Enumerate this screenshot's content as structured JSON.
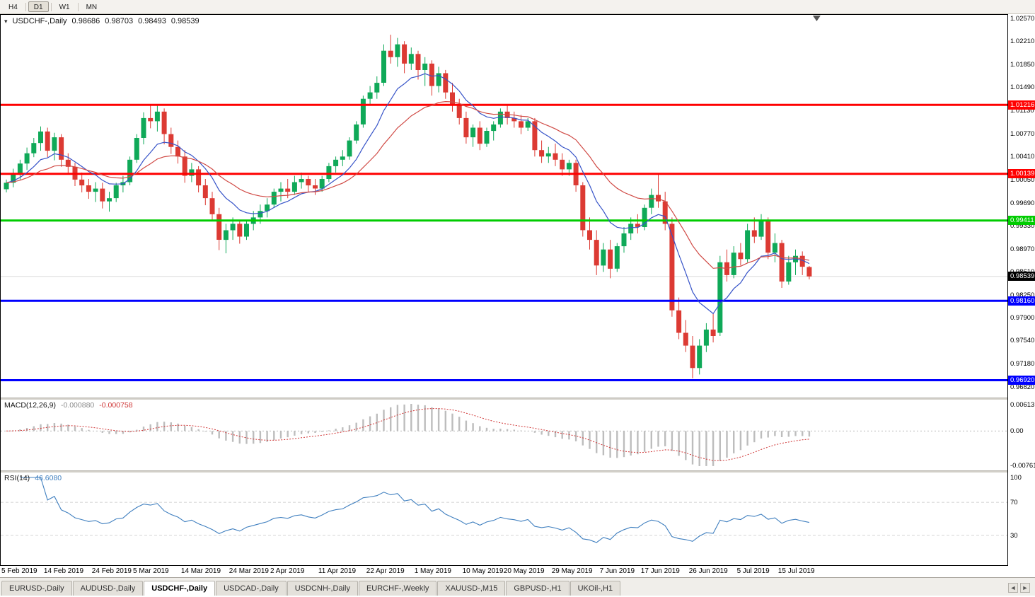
{
  "toolbar": {
    "timeframes": [
      "H4",
      "D1",
      "W1",
      "MN"
    ],
    "active": "D1"
  },
  "chart_data": {
    "type": "candlestick",
    "symbol": "USDCHF",
    "period": "Daily",
    "title": "USDCHF-,Daily",
    "legend": {
      "symbol": "USDCHF-,Daily",
      "open": "0.98686",
      "high": "0.98703",
      "low": "0.98493",
      "close": "0.98539"
    },
    "ylim": [
      0.9665,
      1.0262
    ],
    "price_axis_labels": [
      "1.02570",
      "1.02210",
      "1.01850",
      "1.01490",
      "1.01130",
      "1.00770",
      "1.00410",
      "1.00050",
      "0.99690",
      "0.99330",
      "0.98970",
      "0.98610",
      "0.98250",
      "0.97900",
      "0.97540",
      "0.97180",
      "0.96820"
    ],
    "levels": [
      {
        "label": "1.01216",
        "price": 1.01216,
        "color": "#ff0000"
      },
      {
        "label": "1.00139",
        "price": 1.00139,
        "color": "#ff0000"
      },
      {
        "label": "0.99411",
        "price": 0.99411,
        "color": "#00cc00"
      },
      {
        "label": "0.98160",
        "price": 0.9816,
        "color": "#0000ff"
      },
      {
        "label": "0.96920",
        "price": 0.9692,
        "color": "#0000ff"
      }
    ],
    "current_price": {
      "label": "0.98539",
      "value": 0.98539
    },
    "moving_averages": [
      {
        "type": "ema",
        "period": 9,
        "color": "#3653c8"
      },
      {
        "type": "ema",
        "period": 21,
        "color": "#d04a45"
      }
    ],
    "colors": {
      "bull": "#0fa958",
      "bear": "#dc3a33"
    },
    "x_axis_labels": [
      {
        "text": "5 Feb 2019",
        "index": 0
      },
      {
        "text": "14 Feb 2019",
        "index": 7
      },
      {
        "text": "24 Feb 2019",
        "index": 14
      },
      {
        "text": "5 Mar 2019",
        "index": 20
      },
      {
        "text": "14 Mar 2019",
        "index": 27
      },
      {
        "text": "24 Mar 2019",
        "index": 34
      },
      {
        "text": "2 Apr 2019",
        "index": 40
      },
      {
        "text": "11 Apr 2019",
        "index": 47
      },
      {
        "text": "22 Apr 2019",
        "index": 54
      },
      {
        "text": "1 May 2019",
        "index": 61
      },
      {
        "text": "10 May 2019",
        "index": 68
      },
      {
        "text": "20 May 2019",
        "index": 74
      },
      {
        "text": "29 May 2019",
        "index": 81
      },
      {
        "text": "7 Jun 2019",
        "index": 88
      },
      {
        "text": "17 Jun 2019",
        "index": 94
      },
      {
        "text": "26 Jun 2019",
        "index": 101
      },
      {
        "text": "5 Jul 2019",
        "index": 108
      },
      {
        "text": "15 Jul 2019",
        "index": 114
      }
    ],
    "dates": [
      "2019-02-05",
      "2019-02-06",
      "2019-02-07",
      "2019-02-08",
      "2019-02-11",
      "2019-02-12",
      "2019-02-13",
      "2019-02-14",
      "2019-02-15",
      "2019-02-18",
      "2019-02-19",
      "2019-02-20",
      "2019-02-21",
      "2019-02-22",
      "2019-02-25",
      "2019-02-26",
      "2019-02-27",
      "2019-02-28",
      "2019-03-01",
      "2019-03-04",
      "2019-03-05",
      "2019-03-06",
      "2019-03-07",
      "2019-03-08",
      "2019-03-11",
      "2019-03-12",
      "2019-03-13",
      "2019-03-14",
      "2019-03-15",
      "2019-03-18",
      "2019-03-19",
      "2019-03-20",
      "2019-03-21",
      "2019-03-22",
      "2019-03-25",
      "2019-03-26",
      "2019-03-27",
      "2019-03-28",
      "2019-03-29",
      "2019-04-01",
      "2019-04-02",
      "2019-04-03",
      "2019-04-04",
      "2019-04-05",
      "2019-04-08",
      "2019-04-09",
      "2019-04-10",
      "2019-04-11",
      "2019-04-12",
      "2019-04-15",
      "2019-04-16",
      "2019-04-17",
      "2019-04-18",
      "2019-04-19",
      "2019-04-22",
      "2019-04-23",
      "2019-04-24",
      "2019-04-25",
      "2019-04-26",
      "2019-04-29",
      "2019-04-30",
      "2019-05-01",
      "2019-05-02",
      "2019-05-03",
      "2019-05-06",
      "2019-05-07",
      "2019-05-08",
      "2019-05-09",
      "2019-05-10",
      "2019-05-13",
      "2019-05-14",
      "2019-05-15",
      "2019-05-16",
      "2019-05-17",
      "2019-05-20",
      "2019-05-21",
      "2019-05-22",
      "2019-05-23",
      "2019-05-24",
      "2019-05-27",
      "2019-05-28",
      "2019-05-29",
      "2019-05-30",
      "2019-05-31",
      "2019-06-03",
      "2019-06-04",
      "2019-06-05",
      "2019-06-06",
      "2019-06-07",
      "2019-06-10",
      "2019-06-11",
      "2019-06-12",
      "2019-06-13",
      "2019-06-14",
      "2019-06-17",
      "2019-06-18",
      "2019-06-19",
      "2019-06-20",
      "2019-06-21",
      "2019-06-24",
      "2019-06-25",
      "2019-06-26",
      "2019-06-27",
      "2019-06-28",
      "2019-07-01",
      "2019-07-02",
      "2019-07-03",
      "2019-07-04",
      "2019-07-05",
      "2019-07-08",
      "2019-07-09",
      "2019-07-10",
      "2019-07-11",
      "2019-07-12",
      "2019-07-15",
      "2019-07-16",
      "2019-07-17",
      "2019-07-18"
    ],
    "ohlc": [
      [
        0.999,
        1.0005,
        0.9985,
        1.0
      ],
      [
        1.0,
        1.0022,
        0.9993,
        1.0015
      ],
      [
        1.0015,
        1.0036,
        1.0005,
        1.003
      ],
      [
        1.003,
        1.0055,
        1.002,
        1.0046
      ],
      [
        1.0046,
        1.007,
        1.004,
        1.0062
      ],
      [
        1.0062,
        1.0088,
        1.005,
        1.008
      ],
      [
        1.008,
        1.0086,
        1.004,
        1.005
      ],
      [
        1.005,
        1.0078,
        1.0035,
        1.0071
      ],
      [
        1.0071,
        1.0076,
        1.0025,
        1.0036
      ],
      [
        1.0036,
        1.0046,
        1.0015,
        1.0025
      ],
      [
        1.0025,
        1.0031,
        0.9995,
        1.0005
      ],
      [
        1.0005,
        1.0016,
        0.9985,
        0.9996
      ],
      [
        0.9996,
        1.0006,
        0.9975,
        0.9986
      ],
      [
        0.9986,
        1.0001,
        0.997,
        0.9991
      ],
      [
        0.9991,
        1.0,
        0.996,
        0.9971
      ],
      [
        0.9971,
        0.9986,
        0.9955,
        0.9976
      ],
      [
        0.9976,
        1.0,
        0.997,
        0.9996
      ],
      [
        0.9996,
        1.0011,
        0.9985,
        1.0001
      ],
      [
        1.0001,
        1.0041,
        0.9996,
        1.0036
      ],
      [
        1.0036,
        1.0076,
        1.0031,
        1.007
      ],
      [
        1.007,
        1.011,
        1.006,
        1.0101
      ],
      [
        1.0101,
        1.0122,
        1.0085,
        1.0096
      ],
      [
        1.0096,
        1.0121,
        1.008,
        1.0111
      ],
      [
        1.0111,
        1.0116,
        1.006,
        1.0076
      ],
      [
        1.0076,
        1.0086,
        1.0045,
        1.0056
      ],
      [
        1.0056,
        1.0066,
        1.003,
        1.0041
      ],
      [
        1.0041,
        1.0051,
        1.0,
        1.0011
      ],
      [
        1.0011,
        1.0031,
        1.0001,
        1.0021
      ],
      [
        1.0021,
        1.0026,
        0.9985,
        0.9996
      ],
      [
        0.9996,
        1.0006,
        0.9965,
        0.9976
      ],
      [
        0.9976,
        0.9986,
        0.994,
        0.9951
      ],
      [
        0.9951,
        0.9961,
        0.9895,
        0.9911
      ],
      [
        0.9911,
        0.9936,
        0.989,
        0.9926
      ],
      [
        0.9926,
        0.9946,
        0.9911,
        0.9936
      ],
      [
        0.9936,
        0.9941,
        0.9905,
        0.9916
      ],
      [
        0.9916,
        0.9941,
        0.9911,
        0.9936
      ],
      [
        0.9936,
        0.9956,
        0.9926,
        0.9946
      ],
      [
        0.9946,
        0.9966,
        0.9936,
        0.9956
      ],
      [
        0.9956,
        0.9976,
        0.9946,
        0.9966
      ],
      [
        0.9966,
        0.9991,
        0.9961,
        0.9986
      ],
      [
        0.9986,
        1.0001,
        0.9971,
        0.9991
      ],
      [
        0.9991,
        1.0006,
        0.9976,
        0.9986
      ],
      [
        0.9986,
        1.0011,
        0.9981,
        1.0001
      ],
      [
        1.0001,
        1.0016,
        0.9991,
        1.0006
      ],
      [
        1.0006,
        1.0011,
        0.9986,
        0.9996
      ],
      [
        0.9996,
        1.0006,
        0.9981,
        0.9991
      ],
      [
        0.9991,
        1.0011,
        0.9986,
        1.0006
      ],
      [
        1.0006,
        1.0031,
        1.0001,
        1.0026
      ],
      [
        1.0026,
        1.0041,
        1.0016,
        1.0036
      ],
      [
        1.0036,
        1.0051,
        1.0026,
        1.0041
      ],
      [
        1.0041,
        1.0071,
        1.0036,
        1.0066
      ],
      [
        1.0066,
        1.0096,
        1.0061,
        1.0091
      ],
      [
        1.0091,
        1.0136,
        1.0086,
        1.0131
      ],
      [
        1.0131,
        1.0151,
        1.0121,
        1.0141
      ],
      [
        1.0141,
        1.0166,
        1.0131,
        1.0156
      ],
      [
        1.0156,
        1.0216,
        1.0151,
        1.0206
      ],
      [
        1.0206,
        1.0231,
        1.0186,
        1.0196
      ],
      [
        1.0196,
        1.0226,
        1.0181,
        1.0216
      ],
      [
        1.0216,
        1.0221,
        1.0171,
        1.0186
      ],
      [
        1.0186,
        1.0211,
        1.0176,
        1.0201
      ],
      [
        1.0201,
        1.0206,
        1.0161,
        1.0176
      ],
      [
        1.0176,
        1.0196,
        1.0151,
        1.0186
      ],
      [
        1.0186,
        1.0191,
        1.0136,
        1.0151
      ],
      [
        1.0151,
        1.0181,
        1.0141,
        1.0171
      ],
      [
        1.0171,
        1.0176,
        1.0131,
        1.0141
      ],
      [
        1.0141,
        1.0156,
        1.0111,
        1.0121
      ],
      [
        1.0121,
        1.0131,
        1.0091,
        1.0101
      ],
      [
        1.0101,
        1.0111,
        1.0061,
        1.0071
      ],
      [
        1.0071,
        1.0091,
        1.0056,
        1.0086
      ],
      [
        1.0086,
        1.0096,
        1.0051,
        1.0061
      ],
      [
        1.0061,
        1.0086,
        1.0056,
        1.0081
      ],
      [
        1.0081,
        1.0096,
        1.0066,
        1.0091
      ],
      [
        1.0091,
        1.0116,
        1.0086,
        1.0111
      ],
      [
        1.0111,
        1.0121,
        1.0091,
        1.0101
      ],
      [
        1.0101,
        1.0111,
        1.0086,
        1.0096
      ],
      [
        1.0096,
        1.0106,
        1.0076,
        1.0086
      ],
      [
        1.0086,
        1.0101,
        1.0081,
        1.0096
      ],
      [
        1.0096,
        1.0101,
        1.0041,
        1.0051
      ],
      [
        1.0051,
        1.0066,
        1.0031,
        1.0041
      ],
      [
        1.0041,
        1.0056,
        1.0031,
        1.0046
      ],
      [
        1.0046,
        1.0061,
        1.0026,
        1.0036
      ],
      [
        1.0036,
        1.0046,
        1.0011,
        1.0021
      ],
      [
        1.0021,
        1.0036,
        1.0011,
        1.0031
      ],
      [
        1.0031,
        1.0036,
        0.9986,
        0.9996
      ],
      [
        0.9996,
        1.0001,
        0.9916,
        0.9926
      ],
      [
        0.9926,
        0.9946,
        0.9896,
        0.9911
      ],
      [
        0.9911,
        0.9926,
        0.9856,
        0.9871
      ],
      [
        0.9871,
        0.9906,
        0.9861,
        0.9896
      ],
      [
        0.9896,
        0.9911,
        0.9851,
        0.9866
      ],
      [
        0.9866,
        0.9906,
        0.9861,
        0.9901
      ],
      [
        0.9901,
        0.9931,
        0.9891,
        0.9921
      ],
      [
        0.9921,
        0.9946,
        0.9911,
        0.9936
      ],
      [
        0.9936,
        0.9951,
        0.9921,
        0.9931
      ],
      [
        0.9931,
        0.9966,
        0.9926,
        0.9961
      ],
      [
        0.9961,
        0.9991,
        0.9951,
        0.9981
      ],
      [
        0.9981,
        1.0014,
        0.9961,
        0.9971
      ],
      [
        0.9971,
        0.9986,
        0.9926,
        0.9936
      ],
      [
        0.9936,
        0.9946,
        0.9791,
        0.9801
      ],
      [
        0.9801,
        0.9821,
        0.9756,
        0.9766
      ],
      [
        0.9766,
        0.9786,
        0.9736,
        0.9746
      ],
      [
        0.9746,
        0.9761,
        0.9695,
        0.9711
      ],
      [
        0.9711,
        0.9756,
        0.9701,
        0.9746
      ],
      [
        0.9746,
        0.9781,
        0.9736,
        0.9771
      ],
      [
        0.9771,
        0.9796,
        0.9751,
        0.9761
      ],
      [
        0.9766,
        0.9886,
        0.9761,
        0.9876
      ],
      [
        0.9876,
        0.9896,
        0.9846,
        0.9856
      ],
      [
        0.9856,
        0.9901,
        0.9851,
        0.9891
      ],
      [
        0.9891,
        0.9906,
        0.9871,
        0.9881
      ],
      [
        0.9881,
        0.9936,
        0.9876,
        0.9926
      ],
      [
        0.9926,
        0.9946,
        0.9906,
        0.9916
      ],
      [
        0.9916,
        0.9951,
        0.9911,
        0.9941
      ],
      [
        0.9941,
        0.9946,
        0.9881,
        0.9891
      ],
      [
        0.9891,
        0.9921,
        0.9876,
        0.9906
      ],
      [
        0.9906,
        0.9911,
        0.9836,
        0.9846
      ],
      [
        0.9846,
        0.9886,
        0.9841,
        0.9876
      ],
      [
        0.9876,
        0.9896,
        0.9856,
        0.9886
      ],
      [
        0.9886,
        0.9893,
        0.9856,
        0.9869
      ],
      [
        0.98686,
        0.98703,
        0.98493,
        0.98539
      ]
    ]
  },
  "indicators": {
    "macd": {
      "label": "MACD(12,26,9)",
      "value": "-0.000880",
      "signal_value": "-0.000758",
      "params": {
        "fast": 12,
        "slow": 26,
        "signal": 9
      },
      "axis_labels": [
        "0.00613",
        "0.00",
        "-0.00761"
      ],
      "histogram_color": "#bdbdbd",
      "signal_color": "#d03636"
    },
    "rsi": {
      "label": "RSI(14)",
      "value": "46.6080",
      "period": 14,
      "axis_labels": [
        {
          "text": "100",
          "value": 100
        },
        {
          "text": "70",
          "value": 70
        },
        {
          "text": "30",
          "value": 30
        }
      ],
      "levels": [
        70,
        30
      ],
      "line_color": "#3f7fbf"
    }
  },
  "tabs": {
    "items": [
      "EURUSD-,Daily",
      "AUDUSD-,Daily",
      "USDCHF-,Daily",
      "USDCAD-,Daily",
      "USDCNH-,Daily",
      "EURCHF-,Weekly",
      "XAUUSD-,M15",
      "GBPUSD-,H1",
      "UKOil-,H1"
    ],
    "active_index": 2
  },
  "icons": {
    "chart_menu": "▾",
    "tab_scroll_left": "◄",
    "tab_scroll_right": "►"
  }
}
